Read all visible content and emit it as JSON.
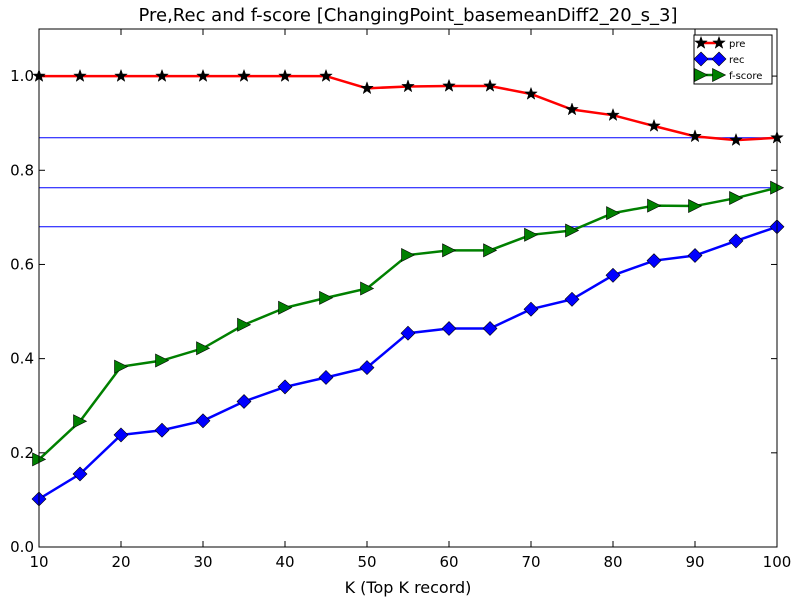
{
  "chart_data": {
    "type": "line",
    "title": "Pre,Rec and f-score [ChangingPoint_basemeanDiff2_20_s_3]",
    "xlabel": "K (Top K record)",
    "ylabel": "",
    "xlim": [
      10,
      100
    ],
    "ylim": [
      0.0,
      1.1
    ],
    "xticks": [
      10,
      20,
      30,
      40,
      50,
      60,
      70,
      80,
      90,
      100
    ],
    "yticks": [
      0.0,
      0.2,
      0.4,
      0.6,
      0.8,
      1.0
    ],
    "x": [
      10,
      15,
      20,
      25,
      30,
      35,
      40,
      45,
      50,
      55,
      60,
      65,
      70,
      75,
      80,
      85,
      90,
      95,
      100
    ],
    "series": [
      {
        "name": "pre",
        "color": "#ff0000",
        "marker": "star",
        "values": [
          1.0,
          1.0,
          1.0,
          1.0,
          1.0,
          1.0,
          1.0,
          1.0,
          0.974,
          0.978,
          0.979,
          0.979,
          0.962,
          0.929,
          0.917,
          0.894,
          0.872,
          0.864,
          0.869
        ]
      },
      {
        "name": "rec",
        "color": "#0000ff",
        "marker": "diamond",
        "values": [
          0.102,
          0.155,
          0.238,
          0.248,
          0.268,
          0.309,
          0.34,
          0.36,
          0.381,
          0.454,
          0.464,
          0.464,
          0.505,
          0.526,
          0.577,
          0.608,
          0.619,
          0.65,
          0.68
        ]
      },
      {
        "name": "f-score",
        "color": "#008000",
        "marker": "triangle-right",
        "values": [
          0.186,
          0.267,
          0.383,
          0.396,
          0.422,
          0.472,
          0.508,
          0.529,
          0.549,
          0.62,
          0.63,
          0.63,
          0.663,
          0.672,
          0.709,
          0.725,
          0.724,
          0.741,
          0.763
        ]
      }
    ],
    "hlines": [
      {
        "y": 0.869,
        "color": "#0000ff"
      },
      {
        "y": 0.763,
        "color": "#0000ff"
      },
      {
        "y": 0.68,
        "color": "#0000ff"
      }
    ],
    "legend_position": "top-right",
    "grid": false
  }
}
